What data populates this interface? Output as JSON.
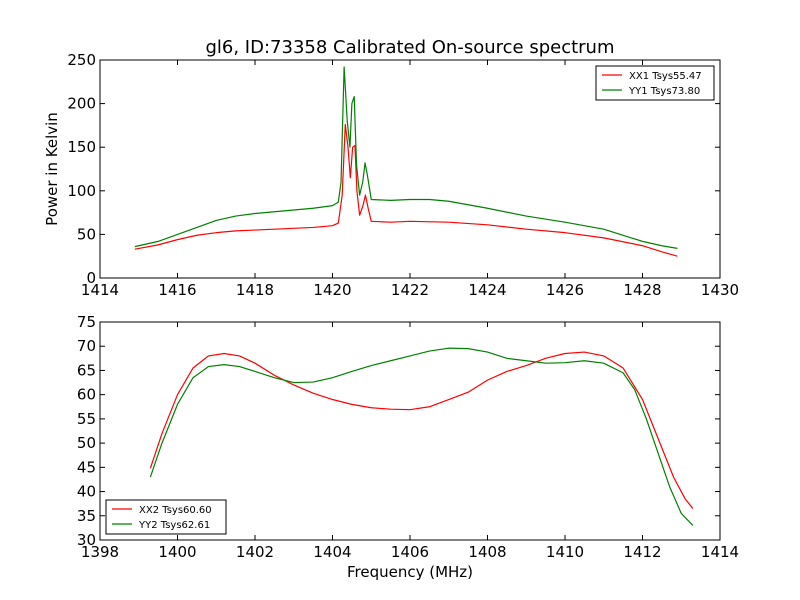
{
  "figure": {
    "title": "gl6, ID:73358 Calibrated On-source spectrum",
    "xlabel": "Frequency (MHz)"
  },
  "chart_data": [
    {
      "type": "line",
      "title": "gl6, ID:73358 Calibrated On-source spectrum",
      "xlabel": "",
      "ylabel": "Power in Kelvin",
      "xlim": [
        1414,
        1430
      ],
      "ylim": [
        0,
        250
      ],
      "xticks": [
        1414,
        1416,
        1418,
        1420,
        1422,
        1424,
        1426,
        1428,
        1430
      ],
      "yticks": [
        0,
        50,
        100,
        150,
        200,
        250
      ],
      "legend_position": "top-right",
      "grid": false,
      "series": [
        {
          "name": "XX1 Tsys55.47",
          "color": "#ff0000",
          "points": [
            [
              1414.9,
              33
            ],
            [
              1415.5,
              38
            ],
            [
              1416.0,
              44
            ],
            [
              1416.5,
              49
            ],
            [
              1417.0,
              52
            ],
            [
              1417.5,
              54
            ],
            [
              1418.0,
              55
            ],
            [
              1418.5,
              56
            ],
            [
              1419.0,
              57
            ],
            [
              1419.5,
              58
            ],
            [
              1420.0,
              60
            ],
            [
              1420.15,
              63
            ],
            [
              1420.25,
              95
            ],
            [
              1420.33,
              176
            ],
            [
              1420.4,
              150
            ],
            [
              1420.46,
              115
            ],
            [
              1420.52,
              150
            ],
            [
              1420.58,
              152
            ],
            [
              1420.63,
              100
            ],
            [
              1420.7,
              72
            ],
            [
              1420.78,
              82
            ],
            [
              1420.85,
              95
            ],
            [
              1420.92,
              80
            ],
            [
              1421.0,
              65
            ],
            [
              1421.5,
              64
            ],
            [
              1422.0,
              65
            ],
            [
              1423.0,
              64
            ],
            [
              1424.0,
              61
            ],
            [
              1425.0,
              56
            ],
            [
              1426.0,
              52
            ],
            [
              1427.0,
              46
            ],
            [
              1428.0,
              37
            ],
            [
              1428.5,
              30
            ],
            [
              1428.9,
              25
            ]
          ]
        },
        {
          "name": "YY1 Tsys73.80",
          "color": "#008000",
          "points": [
            [
              1414.9,
              36
            ],
            [
              1415.5,
              42
            ],
            [
              1416.0,
              50
            ],
            [
              1416.5,
              58
            ],
            [
              1417.0,
              66
            ],
            [
              1417.5,
              71
            ],
            [
              1418.0,
              74
            ],
            [
              1418.5,
              76
            ],
            [
              1419.0,
              78
            ],
            [
              1419.5,
              80
            ],
            [
              1420.0,
              83
            ],
            [
              1420.15,
              87
            ],
            [
              1420.22,
              110
            ],
            [
              1420.3,
              242
            ],
            [
              1420.38,
              180
            ],
            [
              1420.45,
              150
            ],
            [
              1420.5,
              200
            ],
            [
              1420.56,
              208
            ],
            [
              1420.62,
              130
            ],
            [
              1420.7,
              95
            ],
            [
              1420.78,
              110
            ],
            [
              1420.84,
              132
            ],
            [
              1420.9,
              118
            ],
            [
              1421.0,
              90
            ],
            [
              1421.5,
              89
            ],
            [
              1422.0,
              90
            ],
            [
              1422.5,
              90
            ],
            [
              1423.0,
              88
            ],
            [
              1424.0,
              80
            ],
            [
              1425.0,
              71
            ],
            [
              1426.0,
              64
            ],
            [
              1426.5,
              60
            ],
            [
              1427.0,
              56
            ],
            [
              1427.5,
              49
            ],
            [
              1428.0,
              42
            ],
            [
              1428.5,
              37
            ],
            [
              1428.9,
              34
            ]
          ]
        }
      ]
    },
    {
      "type": "line",
      "title": "",
      "xlabel": "Frequency (MHz)",
      "ylabel": "",
      "xlim": [
        1398,
        1414
      ],
      "ylim": [
        30,
        75
      ],
      "xticks": [
        1398,
        1400,
        1402,
        1404,
        1406,
        1408,
        1410,
        1412,
        1414
      ],
      "yticks": [
        30,
        35,
        40,
        45,
        50,
        55,
        60,
        65,
        70,
        75
      ],
      "legend_position": "bottom-left",
      "grid": false,
      "series": [
        {
          "name": "XX2 Tsys60.60",
          "color": "#ff0000",
          "points": [
            [
              1399.3,
              44.8
            ],
            [
              1399.6,
              52
            ],
            [
              1400.0,
              60
            ],
            [
              1400.4,
              65.5
            ],
            [
              1400.8,
              68
            ],
            [
              1401.2,
              68.5
            ],
            [
              1401.6,
              68
            ],
            [
              1402.0,
              66.5
            ],
            [
              1402.5,
              64
            ],
            [
              1403.0,
              62
            ],
            [
              1403.5,
              60.3
            ],
            [
              1404.0,
              59
            ],
            [
              1404.5,
              58
            ],
            [
              1405.0,
              57.3
            ],
            [
              1405.5,
              57
            ],
            [
              1406.0,
              56.9
            ],
            [
              1406.5,
              57.5
            ],
            [
              1407.0,
              59
            ],
            [
              1407.5,
              60.5
            ],
            [
              1408.0,
              63
            ],
            [
              1408.5,
              64.8
            ],
            [
              1409.0,
              66
            ],
            [
              1409.5,
              67.5
            ],
            [
              1410.0,
              68.5
            ],
            [
              1410.5,
              68.8
            ],
            [
              1411.0,
              68
            ],
            [
              1411.5,
              65.5
            ],
            [
              1412.0,
              59
            ],
            [
              1412.4,
              51
            ],
            [
              1412.8,
              43
            ],
            [
              1413.1,
              38.5
            ],
            [
              1413.3,
              36.5
            ]
          ]
        },
        {
          "name": "YY2 Tsys62.61",
          "color": "#008000",
          "points": [
            [
              1399.3,
              43
            ],
            [
              1399.6,
              50
            ],
            [
              1400.0,
              58
            ],
            [
              1400.4,
              63.5
            ],
            [
              1400.8,
              65.8
            ],
            [
              1401.2,
              66.2
            ],
            [
              1401.6,
              65.8
            ],
            [
              1402.0,
              64.8
            ],
            [
              1402.5,
              63.5
            ],
            [
              1403.0,
              62.5
            ],
            [
              1403.5,
              62.6
            ],
            [
              1404.0,
              63.5
            ],
            [
              1404.5,
              64.8
            ],
            [
              1405.0,
              66
            ],
            [
              1405.5,
              67
            ],
            [
              1406.0,
              68
            ],
            [
              1406.5,
              69
            ],
            [
              1407.0,
              69.6
            ],
            [
              1407.5,
              69.5
            ],
            [
              1408.0,
              68.8
            ],
            [
              1408.5,
              67.5
            ],
            [
              1409.0,
              67
            ],
            [
              1409.5,
              66.5
            ],
            [
              1410.0,
              66.6
            ],
            [
              1410.5,
              67
            ],
            [
              1411.0,
              66.5
            ],
            [
              1411.5,
              64.5
            ],
            [
              1411.8,
              61
            ],
            [
              1412.1,
              55
            ],
            [
              1412.4,
              48
            ],
            [
              1412.7,
              41
            ],
            [
              1413.0,
              35.5
            ],
            [
              1413.3,
              33
            ]
          ]
        }
      ]
    }
  ]
}
